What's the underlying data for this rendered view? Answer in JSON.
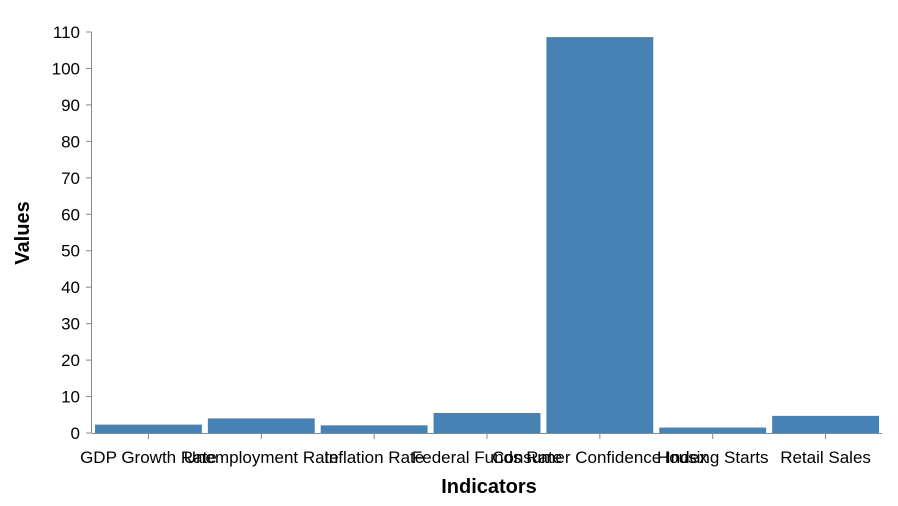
{
  "chart_data": {
    "type": "bar",
    "categories": [
      "GDP Growth Rate",
      "Unemployment Rate",
      "Inflation Rate",
      "Federal Funds Rate",
      "Consumer Confidence Index",
      "Housing Starts",
      "Retail Sales"
    ],
    "values": [
      2.3,
      4.0,
      2.1,
      5.5,
      108.6,
      1.5,
      4.7
    ],
    "xlabel": "Indicators",
    "ylabel": "Values",
    "ylim": [
      0,
      110
    ],
    "yticks": [
      0,
      10,
      20,
      30,
      40,
      50,
      60,
      70,
      80,
      90,
      100,
      110
    ],
    "grid": false,
    "bar_color": "#4682b4",
    "axis_color": "#888888"
  }
}
